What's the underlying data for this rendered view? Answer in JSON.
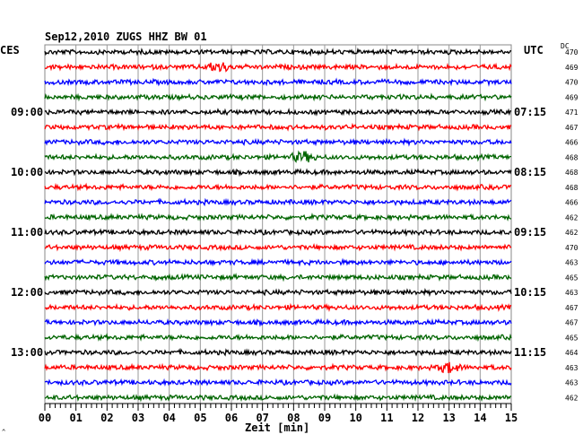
{
  "chart_data": {
    "type": "line",
    "title": "Sep12,2010   ZUGS HHZ BW 01",
    "left_timezone": "CES",
    "right_timezone": "UTC",
    "dc_header": "DC",
    "xlabel": "Zeit [min]",
    "corner_mark": "^",
    "x_ticks": [
      "00",
      "01",
      "02",
      "03",
      "04",
      "05",
      "06",
      "07",
      "08",
      "09",
      "10",
      "11",
      "12",
      "13",
      "14",
      "15"
    ],
    "xlim": [
      0,
      15
    ],
    "trace_colors": [
      "#000000",
      "#ff0000",
      "#0000ff",
      "#006400"
    ],
    "left_time_labels": [
      {
        "trace": 4,
        "label": "09:00"
      },
      {
        "trace": 8,
        "label": "10:00"
      },
      {
        "trace": 12,
        "label": "11:00"
      },
      {
        "trace": 16,
        "label": "12:00"
      },
      {
        "trace": 20,
        "label": "13:00"
      }
    ],
    "right_time_labels": [
      {
        "trace": 4,
        "label": "07:15"
      },
      {
        "trace": 8,
        "label": "08:15"
      },
      {
        "trace": 12,
        "label": "09:15"
      },
      {
        "trace": 16,
        "label": "10:15"
      },
      {
        "trace": 20,
        "label": "11:15"
      }
    ],
    "dc_values": [
      "470",
      "469",
      "470",
      "469",
      "471",
      "467",
      "466",
      "468",
      "468",
      "468",
      "466",
      "462",
      "462",
      "470",
      "463",
      "465",
      "463",
      "467",
      "467",
      "465",
      "464",
      "463",
      "463",
      "462"
    ],
    "events": [
      {
        "trace": 1,
        "minute": 5.6
      },
      {
        "trace": 7,
        "minute": 8.3
      },
      {
        "trace": 21,
        "minute": 13.0
      }
    ],
    "grid": true
  }
}
